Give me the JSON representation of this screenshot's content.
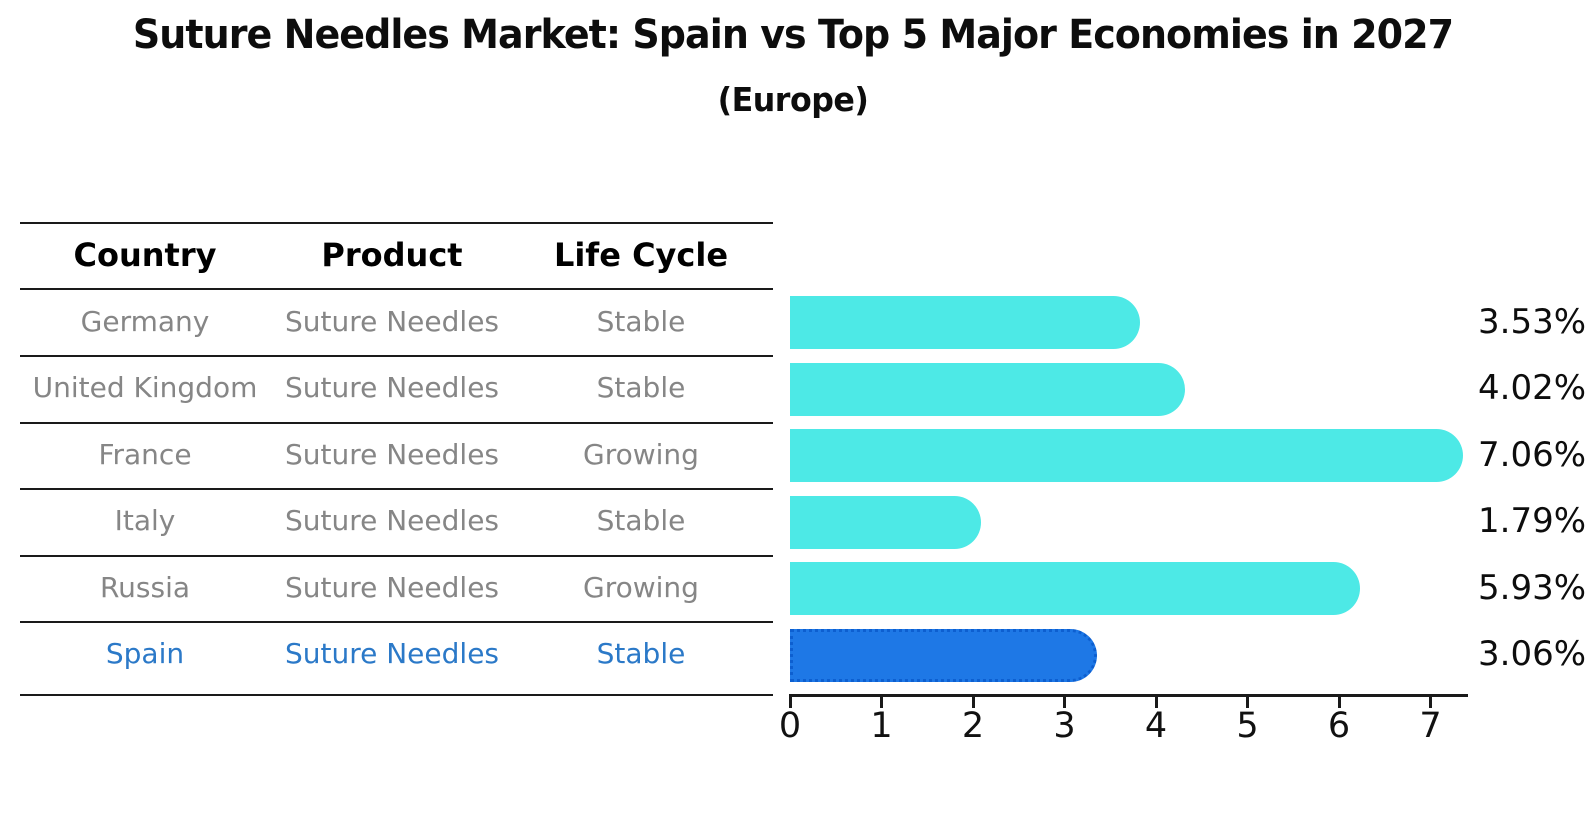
{
  "header": {
    "title": "Suture Needles Market: Spain vs Top 5 Major Economies in 2027",
    "subtitle": "(Europe)"
  },
  "table": {
    "columns": [
      "Country",
      "Product",
      "Life Cycle"
    ],
    "rows": [
      {
        "country": "Germany",
        "product": "Suture Needles",
        "life_cycle": "Stable",
        "highlight": false
      },
      {
        "country": "United Kingdom",
        "product": "Suture Needles",
        "life_cycle": "Stable",
        "highlight": false
      },
      {
        "country": "France",
        "product": "Suture Needles",
        "life_cycle": "Growing",
        "highlight": false
      },
      {
        "country": "Italy",
        "product": "Suture Needles",
        "life_cycle": "Stable",
        "highlight": false
      },
      {
        "country": "Russia",
        "product": "Suture Needles",
        "life_cycle": "Growing",
        "highlight": false
      },
      {
        "country": "Spain",
        "product": "Suture Needles",
        "life_cycle": "Stable",
        "highlight": true
      }
    ]
  },
  "chart_data": {
    "type": "bar",
    "orientation": "horizontal",
    "title": "Suture Needles Market: Spain vs Top 5 Major Economies in 2027 (Europe)",
    "categories": [
      "Germany",
      "United Kingdom",
      "France",
      "Italy",
      "Russia",
      "Spain"
    ],
    "values": [
      3.53,
      4.02,
      7.06,
      1.79,
      5.93,
      3.06
    ],
    "labels": [
      "3.53%",
      "4.02%",
      "7.06%",
      "1.79%",
      "5.93%",
      "3.06%"
    ],
    "x_ticks": [
      "0",
      "1",
      "2",
      "3",
      "4",
      "5",
      "6",
      "7"
    ],
    "xlim": [
      0,
      7.4
    ],
    "xlabel": "",
    "ylabel": "",
    "grid": false,
    "legend": false,
    "bar_color": "#4DE9E6",
    "highlight_index": 5,
    "highlight_color": "#1E78E6",
    "highlight_border_color": "#0D5FD0",
    "axis_color": "#1a1a1a",
    "value_label_color": "#0d0d0d"
  }
}
